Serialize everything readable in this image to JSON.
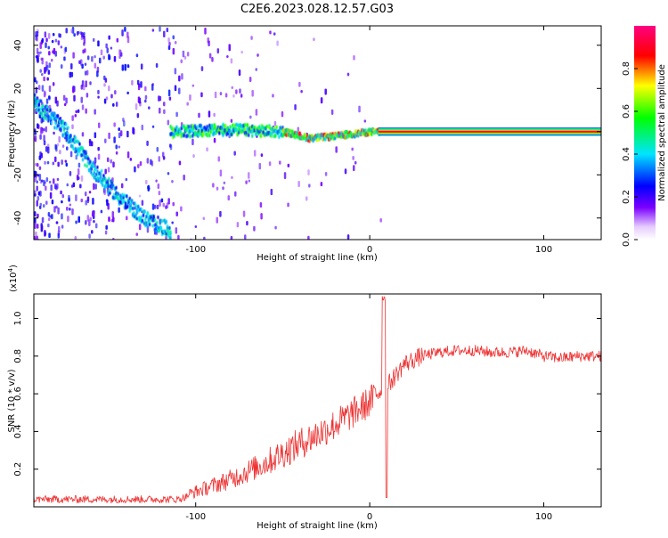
{
  "title": "C2E6.2023.028.12.57.G03",
  "chart_data": [
    {
      "type": "heatmap",
      "xlabel": "Height of straight line (km)",
      "ylabel": "Frequency (Hz)",
      "xlim": [
        -193,
        133
      ],
      "ylim": [
        -50,
        49
      ],
      "xticks": [
        -100,
        0,
        100
      ],
      "yticks": [
        -40,
        -20,
        0,
        20,
        40
      ],
      "grid": false,
      "colorbar": {
        "label": "Normalized spectral amplitude",
        "range": [
          0,
          1
        ],
        "ticks": [
          "0.0",
          "0.2",
          "0.4",
          "0.6",
          "0.8"
        ],
        "colormap": [
          "#ffffff",
          "#7b00ff",
          "#0000ff",
          "#00e5ff",
          "#00ff00",
          "#ffff00",
          "#ff0000",
          "#ff0080"
        ]
      },
      "features": [
        {
          "name": "descending trace",
          "x": [
            -193,
            -175,
            -160,
            -145,
            -130,
            -115
          ],
          "y": [
            14,
            0,
            -17,
            -30,
            -40,
            -46
          ]
        },
        {
          "name": "main line",
          "x": [
            -115,
            -80,
            -50,
            -35,
            -20,
            0,
            133
          ],
          "y": [
            0,
            1,
            0,
            -3,
            -2,
            0,
            0
          ]
        }
      ]
    },
    {
      "type": "line",
      "xlabel": "Height of straight line (km)",
      "ylabel": "SNR (10 * v/v)",
      "yscale_label": "(x10",
      "yscale_exp": "4",
      "xlim": [
        -193,
        133
      ],
      "ylim": [
        0,
        1.13
      ],
      "xticks": [
        -100,
        0,
        100
      ],
      "yticks": [
        0.2,
        0.4,
        0.6,
        0.8,
        1.0
      ],
      "grid": false,
      "series_color": "#ee3333",
      "x": [
        -190,
        -170,
        -150,
        -130,
        -110,
        -100,
        -90,
        -80,
        -70,
        -60,
        -50,
        -40,
        -30,
        -20,
        -10,
        0,
        5,
        8,
        10,
        15,
        20,
        30,
        40,
        50,
        60,
        70,
        80,
        90,
        100,
        110,
        120,
        130
      ],
      "y": [
        0.04,
        0.04,
        0.04,
        0.04,
        0.04,
        0.07,
        0.1,
        0.13,
        0.17,
        0.21,
        0.26,
        0.31,
        0.36,
        0.41,
        0.47,
        0.53,
        0.59,
        0.62,
        0.64,
        0.7,
        0.76,
        0.8,
        0.82,
        0.83,
        0.83,
        0.82,
        0.82,
        0.83,
        0.8,
        0.79,
        0.8,
        0.8
      ]
    }
  ]
}
